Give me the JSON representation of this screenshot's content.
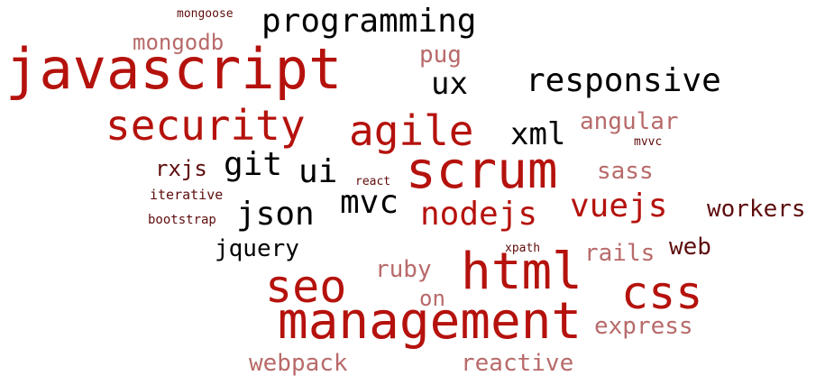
{
  "colors": {
    "red": "#b5120d",
    "black": "#000000",
    "darkred": "#5e0c0c",
    "rose": "#b86a6a"
  },
  "words": {
    "javascript": {
      "text": "javascript",
      "color": "#b5120d"
    },
    "programming": {
      "text": "programming",
      "color": "#000000"
    },
    "mongoose": {
      "text": "mongoose",
      "color": "#5e0c0c"
    },
    "mongodb": {
      "text": "mongodb",
      "color": "#b86a6a"
    },
    "pug": {
      "text": "pug",
      "color": "#b86a6a"
    },
    "ux": {
      "text": "ux",
      "color": "#000000"
    },
    "responsive": {
      "text": "responsive",
      "color": "#000000"
    },
    "security": {
      "text": "security",
      "color": "#b5120d"
    },
    "agile": {
      "text": "agile",
      "color": "#b5120d"
    },
    "xml": {
      "text": "xml",
      "color": "#000000"
    },
    "angular": {
      "text": "angular",
      "color": "#b86a6a"
    },
    "mvvc": {
      "text": "mvvc",
      "color": "#5e0c0c"
    },
    "scrum": {
      "text": "scrum",
      "color": "#b5120d"
    },
    "rxjs": {
      "text": "rxjs",
      "color": "#5e0c0c"
    },
    "git": {
      "text": "git",
      "color": "#000000"
    },
    "ui": {
      "text": "ui",
      "color": "#000000"
    },
    "react": {
      "text": "react",
      "color": "#5e0c0c"
    },
    "sass": {
      "text": "sass",
      "color": "#b86a6a"
    },
    "iterative": {
      "text": "iterative",
      "color": "#5e0c0c"
    },
    "mvc": {
      "text": "mvc",
      "color": "#000000"
    },
    "vuejs": {
      "text": "vuejs",
      "color": "#b5120d"
    },
    "workers": {
      "text": "workers",
      "color": "#5e0c0c"
    },
    "json": {
      "text": "json",
      "color": "#000000"
    },
    "nodejs": {
      "text": "nodejs",
      "color": "#b5120d"
    },
    "bootstrap": {
      "text": "bootstrap",
      "color": "#5e0c0c"
    },
    "jquery": {
      "text": "jquery",
      "color": "#000000"
    },
    "xpath": {
      "text": "xpath",
      "color": "#5e0c0c"
    },
    "rails": {
      "text": "rails",
      "color": "#b86a6a"
    },
    "web": {
      "text": "web",
      "color": "#5e0c0c"
    },
    "ruby": {
      "text": "ruby",
      "color": "#b86a6a"
    },
    "html": {
      "text": "html",
      "color": "#b5120d"
    },
    "seo": {
      "text": "seo",
      "color": "#b5120d"
    },
    "on": {
      "text": "on",
      "color": "#b86a6a"
    },
    "css": {
      "text": "css",
      "color": "#b5120d"
    },
    "management": {
      "text": "management",
      "color": "#b5120d"
    },
    "express": {
      "text": "express",
      "color": "#b86a6a"
    },
    "webpack": {
      "text": "webpack",
      "color": "#b86a6a"
    },
    "reactive": {
      "text": "reactive",
      "color": "#b86a6a"
    }
  }
}
